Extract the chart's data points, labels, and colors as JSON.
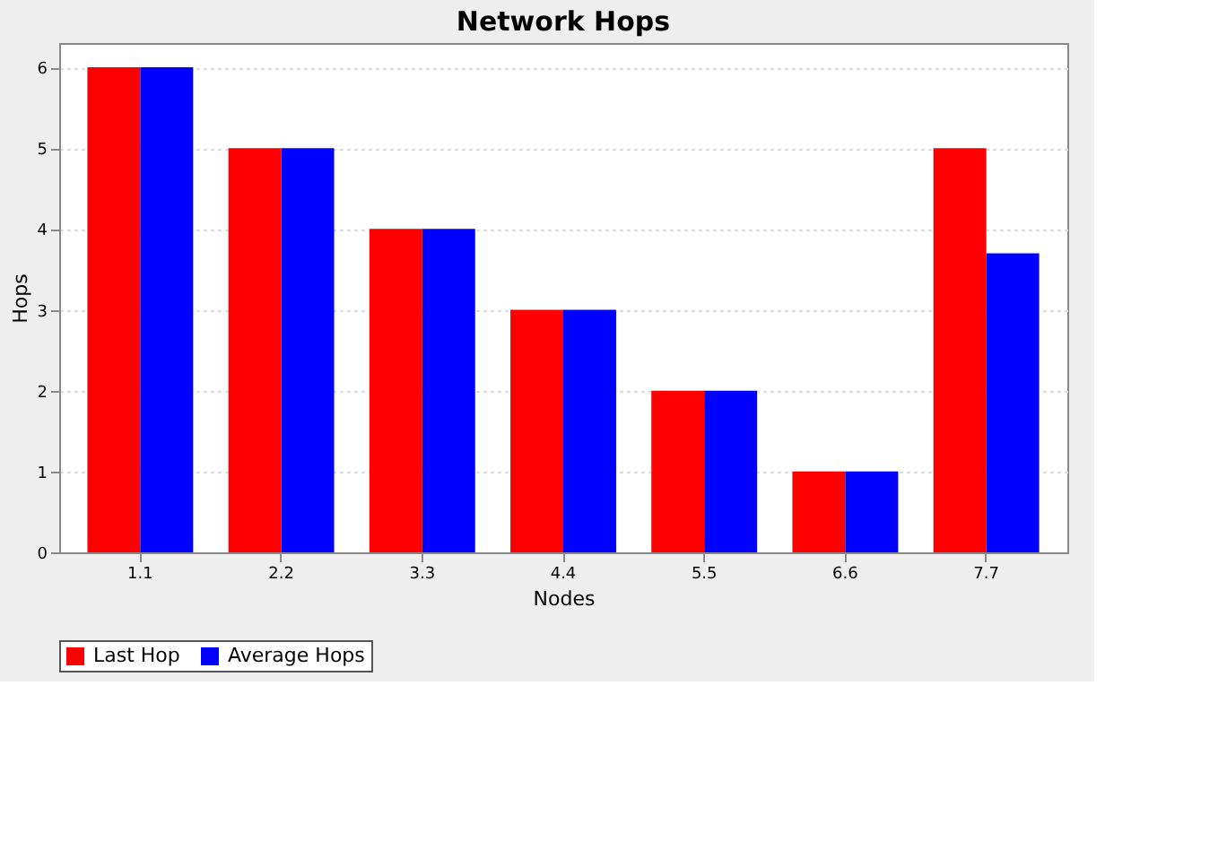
{
  "chart_data": {
    "type": "bar",
    "title": "Network Hops",
    "xlabel": "Nodes",
    "ylabel": "Hops",
    "categories": [
      "1.1",
      "2.2",
      "3.3",
      "4.4",
      "5.5",
      "6.6",
      "7.7"
    ],
    "series": [
      {
        "name": "Last Hop",
        "color": "#ff0000",
        "values": [
          6,
          5,
          4,
          3,
          2,
          1,
          5
        ]
      },
      {
        "name": "Average Hops",
        "color": "#0000ff",
        "values": [
          6,
          5,
          4,
          3,
          2,
          1,
          3.7
        ]
      }
    ],
    "ylim": [
      0,
      6.3
    ],
    "yticks": [
      0,
      1,
      2,
      3,
      4,
      5,
      6
    ],
    "grid": "y",
    "legend": "bottom"
  }
}
